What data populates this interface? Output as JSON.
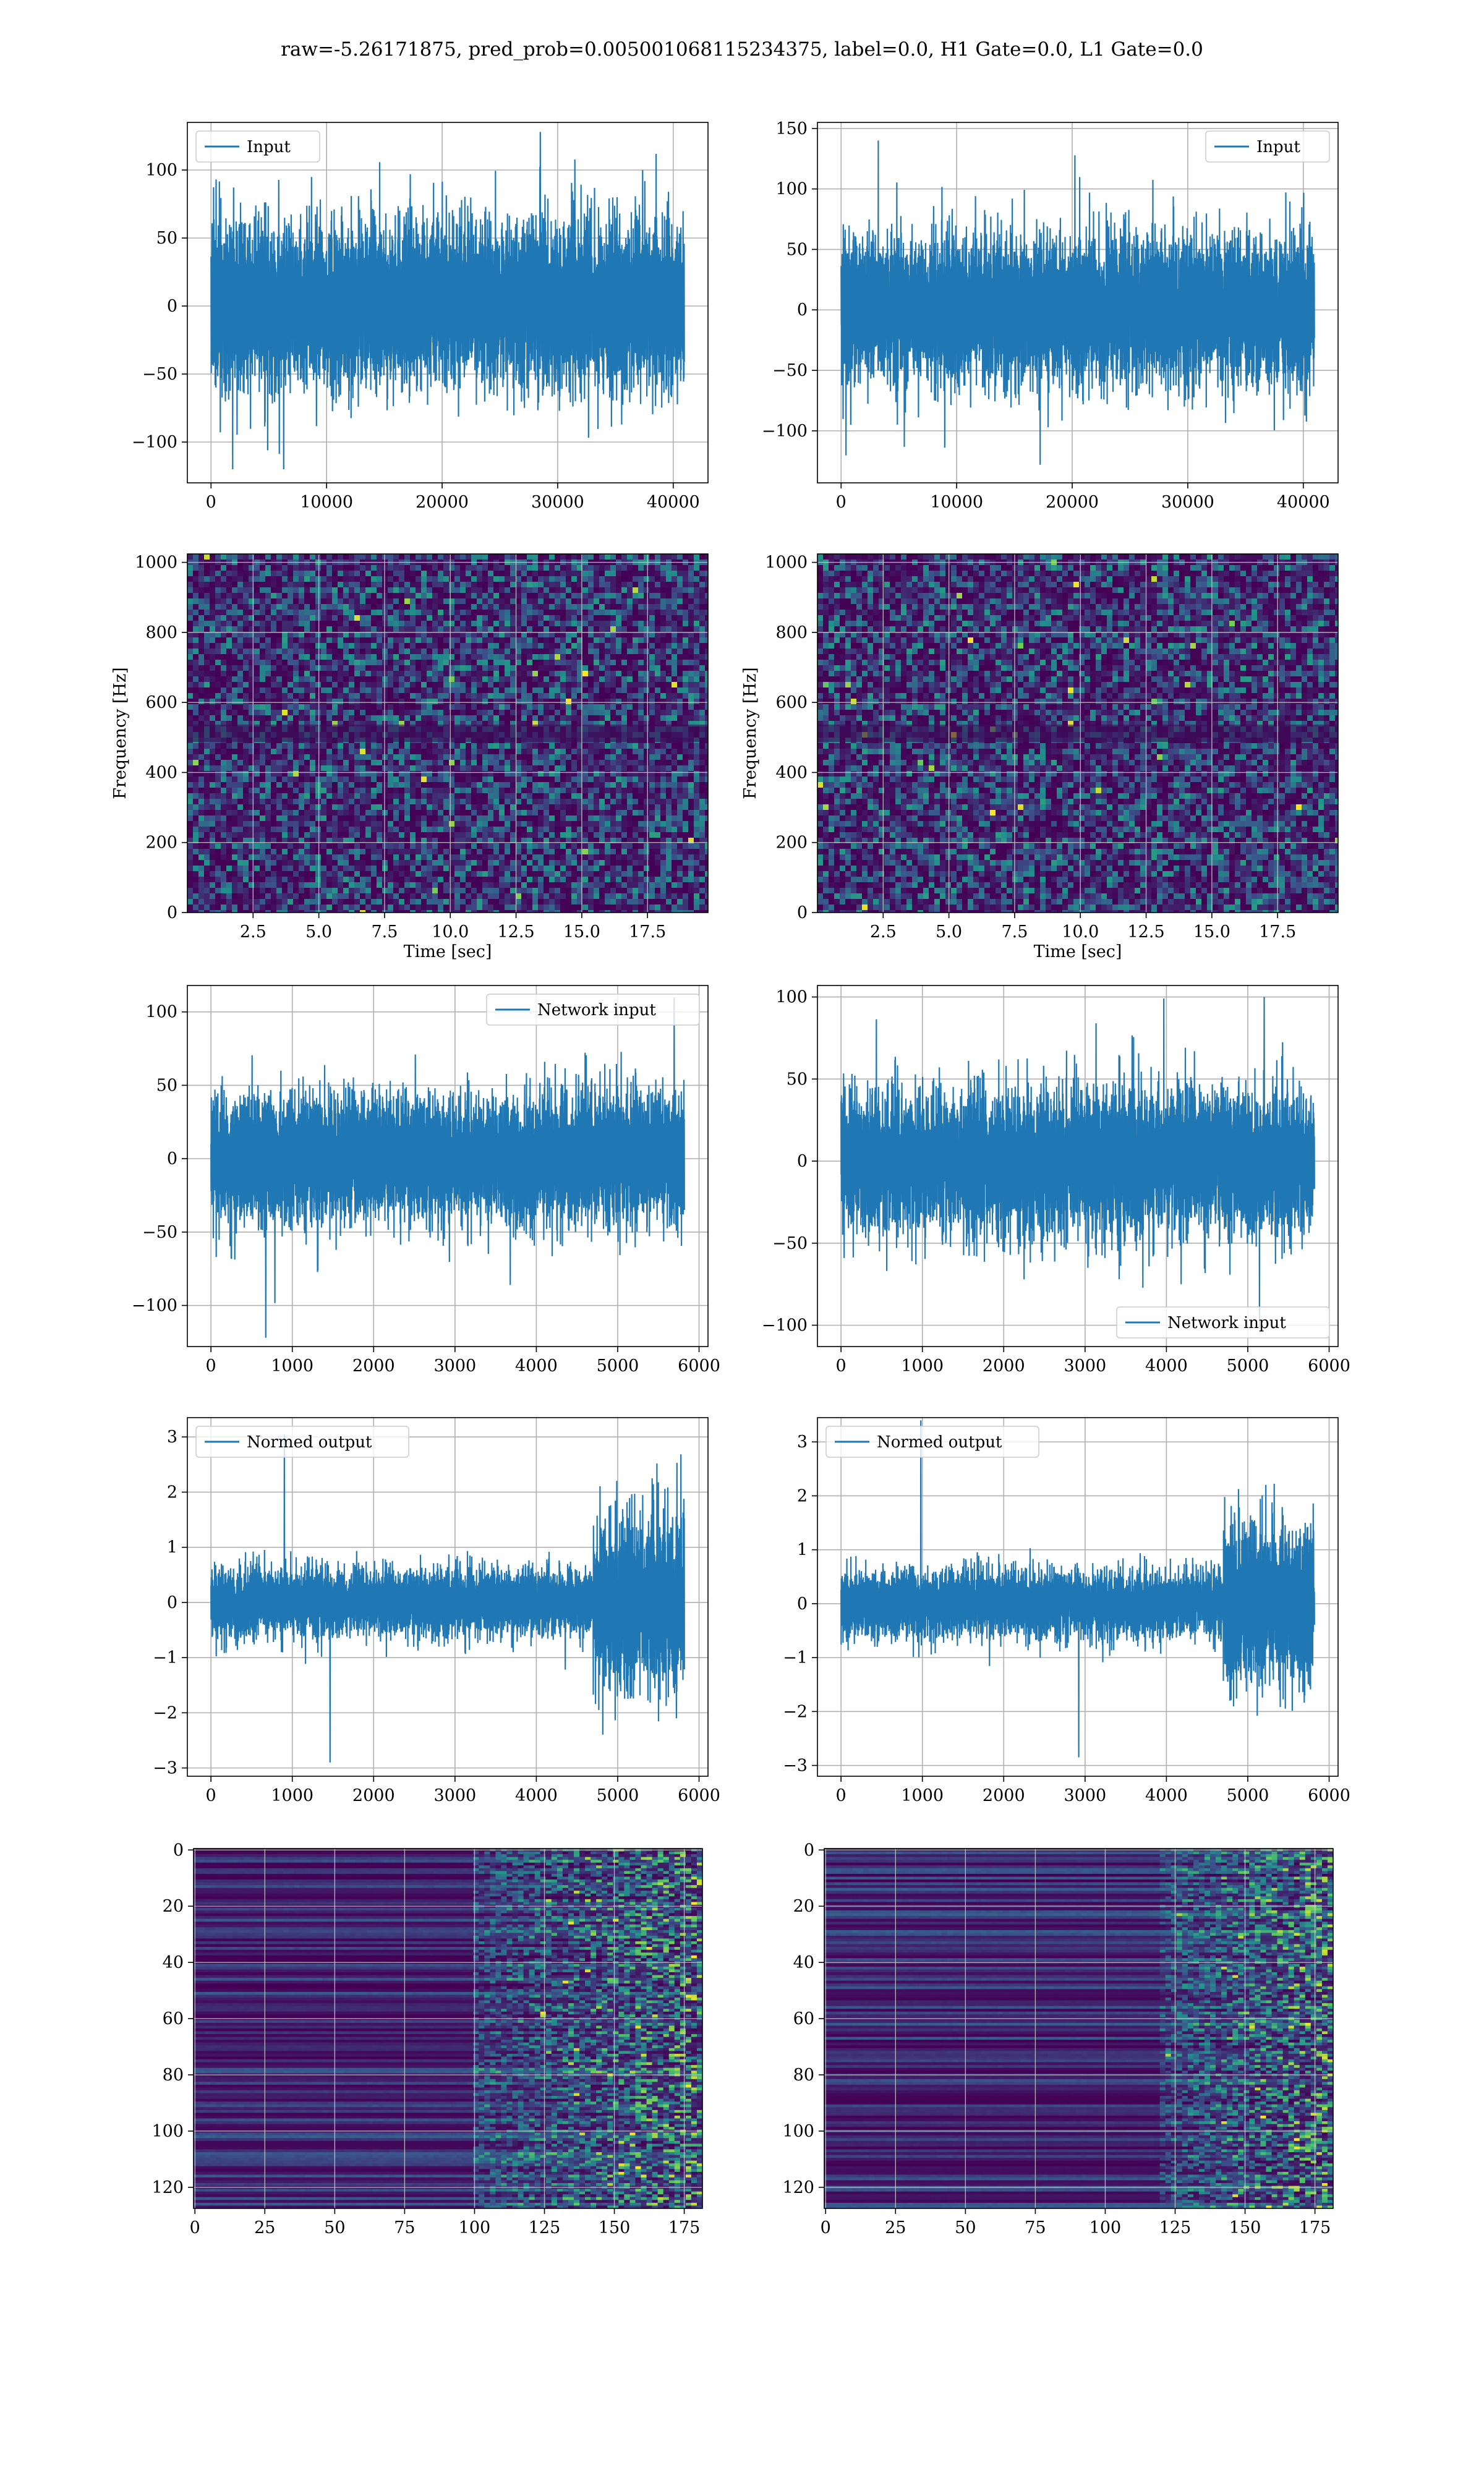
{
  "figure": {
    "suptitle": "raw=-5.26171875, pred_prob=0.005001068115234375, label=0.0, H1 Gate=0.0, L1 Gate=0.0"
  },
  "colors": {
    "line": "#1f77b4",
    "grid": "#b0b0b0",
    "axes": "#000000",
    "viridis_low": "#440154",
    "viridis_mid": "#21918c",
    "viridis_high": "#fde725"
  },
  "chart_data": [
    {
      "id": "input-h1",
      "type": "line",
      "signal": "noise",
      "legend": "Input",
      "legend_loc": "upper left",
      "xlim": [
        -2048,
        43008
      ],
      "ylim": [
        -130,
        135
      ],
      "xticks": [
        0,
        10000,
        20000,
        30000,
        40000
      ],
      "yticks": [
        -100,
        -50,
        0,
        50,
        100
      ],
      "x_range": [
        0,
        40960
      ],
      "amplitude": 62,
      "peak_max": 128,
      "peak_min": -120,
      "xlabel": "",
      "ylabel": "",
      "grid": true
    },
    {
      "id": "input-l1",
      "type": "line",
      "signal": "noise",
      "legend": "Input",
      "legend_loc": "upper right",
      "xlim": [
        -2048,
        43008
      ],
      "ylim": [
        -143,
        155
      ],
      "xticks": [
        0,
        10000,
        20000,
        30000,
        40000
      ],
      "yticks": [
        -100,
        -50,
        0,
        50,
        100,
        150
      ],
      "x_range": [
        0,
        40960
      ],
      "amplitude": 62,
      "peak_max": 140,
      "peak_min": -128,
      "xlabel": "",
      "ylabel": "",
      "grid": true
    },
    {
      "id": "spectrogram-h1",
      "type": "heatmap",
      "style": "speckle",
      "xlim": [
        0,
        19.8
      ],
      "ylim": [
        0,
        1024
      ],
      "xticks": [
        2.5,
        5.0,
        7.5,
        10.0,
        12.5,
        15.0,
        17.5
      ],
      "xticklabels": [
        "2.5",
        "5.0",
        "7.5",
        "10.0",
        "12.5",
        "15.0",
        "17.5"
      ],
      "yticks": [
        0,
        200,
        400,
        600,
        800,
        1000
      ],
      "xlabel": "Time [sec]",
      "ylabel": "Frequency [Hz]",
      "band_hz": 512,
      "grid": true
    },
    {
      "id": "spectrogram-l1",
      "type": "heatmap",
      "style": "speckle",
      "xlim": [
        0,
        19.8
      ],
      "ylim": [
        0,
        1024
      ],
      "xticks": [
        2.5,
        5.0,
        7.5,
        10.0,
        12.5,
        15.0,
        17.5
      ],
      "xticklabels": [
        "2.5",
        "5.0",
        "7.5",
        "10.0",
        "12.5",
        "15.0",
        "17.5"
      ],
      "yticks": [
        0,
        200,
        400,
        600,
        800,
        1000
      ],
      "xlabel": "Time [sec]",
      "ylabel": "Frequency [Hz]",
      "band_hz": 512,
      "grid": true
    },
    {
      "id": "network-input-h1",
      "type": "line",
      "signal": "noise",
      "legend": "Network input",
      "legend_loc": "upper right",
      "xlim": [
        -290,
        6110
      ],
      "ylim": [
        -128,
        118
      ],
      "xticks": [
        0,
        1000,
        2000,
        3000,
        4000,
        5000,
        6000
      ],
      "yticks": [
        -100,
        -50,
        0,
        50,
        100
      ],
      "x_range": [
        0,
        5820
      ],
      "amplitude": 44,
      "peak_max": 110,
      "peak_min": -122,
      "xlabel": "",
      "ylabel": "",
      "grid": true
    },
    {
      "id": "network-input-l1",
      "type": "line",
      "signal": "noise",
      "legend": "Network input",
      "legend_loc": "lower right",
      "xlim": [
        -290,
        6110
      ],
      "ylim": [
        -113,
        107
      ],
      "xticks": [
        0,
        1000,
        2000,
        3000,
        4000,
        5000,
        6000
      ],
      "yticks": [
        -100,
        -50,
        0,
        50,
        100
      ],
      "x_range": [
        0,
        5820
      ],
      "amplitude": 44,
      "peak_max": 100,
      "peak_min": -102,
      "xlabel": "",
      "ylabel": "",
      "grid": true
    },
    {
      "id": "normed-output-h1",
      "type": "line",
      "signal": "burst",
      "legend": "Normed output",
      "legend_loc": "upper left",
      "xlim": [
        -290,
        6110
      ],
      "ylim": [
        -3.15,
        3.35
      ],
      "xticks": [
        0,
        1000,
        2000,
        3000,
        4000,
        5000,
        6000
      ],
      "yticks": [
        -3,
        -2,
        -1,
        0,
        1,
        2,
        3
      ],
      "x_range": [
        0,
        5820
      ],
      "amplitude": 0.62,
      "burst_start": 4700,
      "burst_amplitude": 1.6,
      "peak_max": 3.05,
      "peak_min": -2.9,
      "xlabel": "",
      "ylabel": "",
      "grid": true
    },
    {
      "id": "normed-output-l1",
      "type": "line",
      "signal": "burst",
      "legend": "Normed output",
      "legend_loc": "upper left",
      "xlim": [
        -290,
        6110
      ],
      "ylim": [
        -3.2,
        3.45
      ],
      "xticks": [
        0,
        1000,
        2000,
        3000,
        4000,
        5000,
        6000
      ],
      "yticks": [
        -3,
        -2,
        -1,
        0,
        1,
        2,
        3
      ],
      "x_range": [
        0,
        5820
      ],
      "amplitude": 0.62,
      "burst_start": 4700,
      "burst_amplitude": 1.5,
      "peak_max": 3.4,
      "peak_min": -2.85,
      "xlabel": "",
      "ylabel": "",
      "grid": true
    },
    {
      "id": "feature-map-h1",
      "type": "heatmap",
      "style": "stripes",
      "xlim": [
        -0.5,
        181.5
      ],
      "ylim": [
        127.5,
        -0.5
      ],
      "xticks": [
        0,
        25,
        50,
        75,
        100,
        125,
        150,
        175
      ],
      "yticks": [
        0,
        20,
        40,
        60,
        80,
        100,
        120
      ],
      "activity_start": 100,
      "rows": 128,
      "cols": 182,
      "xlabel": "",
      "ylabel": "",
      "grid": true
    },
    {
      "id": "feature-map-l1",
      "type": "heatmap",
      "style": "stripes",
      "xlim": [
        -0.5,
        181.5
      ],
      "ylim": [
        127.5,
        -0.5
      ],
      "xticks": [
        0,
        25,
        50,
        75,
        100,
        125,
        150,
        175
      ],
      "yticks": [
        0,
        20,
        40,
        60,
        80,
        100,
        120
      ],
      "activity_start": 120,
      "rows": 128,
      "cols": 182,
      "xlabel": "",
      "ylabel": "",
      "grid": true
    }
  ]
}
